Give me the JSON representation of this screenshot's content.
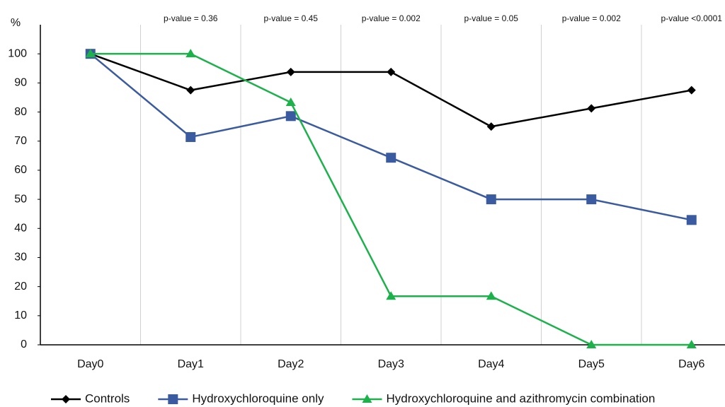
{
  "chart_data": {
    "type": "line",
    "y_label": "%",
    "categories": [
      "Day0",
      "Day1",
      "Day2",
      "Day3",
      "Day4",
      "Day5",
      "Day6"
    ],
    "series": [
      {
        "name": "Controls",
        "color": "#000000",
        "marker": "diamond",
        "values": [
          100,
          87.5,
          93.75,
          93.75,
          75,
          81.25,
          87.5
        ]
      },
      {
        "name": "Hydroxychloroquine only",
        "color": "#3a5ba0",
        "marker": "square",
        "values": [
          100,
          71.4,
          78.6,
          64.3,
          50,
          50,
          42.9
        ]
      },
      {
        "name": "Hydroxychloroquine and azithromycin combination",
        "color": "#1db14b",
        "marker": "triangle",
        "values": [
          100,
          100,
          83.3,
          16.7,
          16.7,
          0,
          0
        ]
      }
    ],
    "annotations": [
      "p-value = 0.36",
      "p-value = 0.45",
      "p-value = 0.002",
      "p-value = 0.05",
      "p-value = 0.002",
      "p-value <0.0001"
    ],
    "ylim": [
      0,
      110
    ],
    "yticks": [
      0,
      10,
      20,
      30,
      40,
      50,
      60,
      70,
      80,
      90,
      100
    ],
    "grid": true,
    "legend": "bottom"
  }
}
